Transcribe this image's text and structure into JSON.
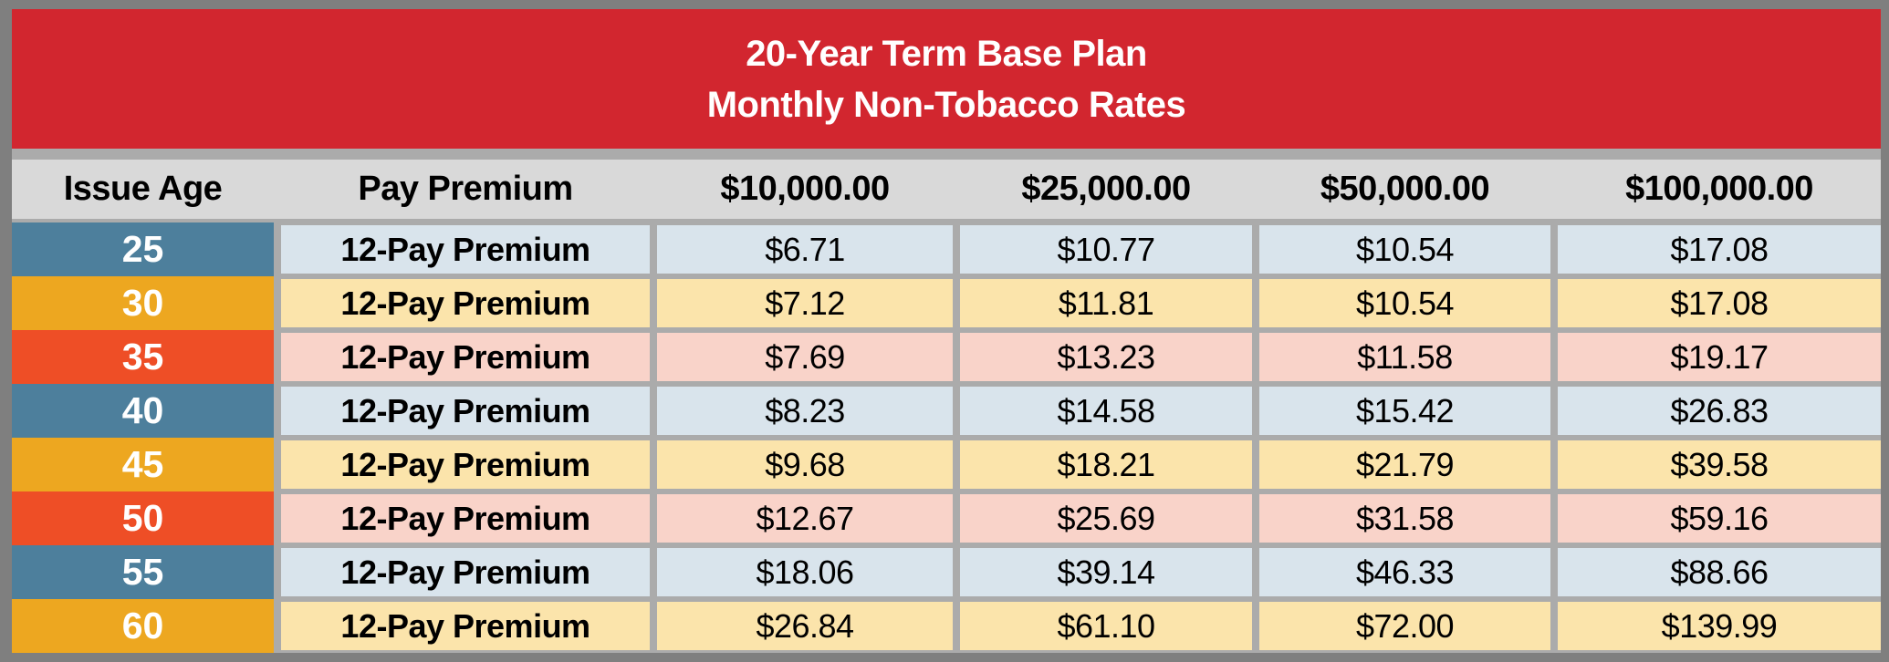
{
  "banner": {
    "line1": "20-Year Term Base Plan",
    "line2": "Monthly Non-Tobacco Rates"
  },
  "columns": [
    "Issue Age",
    "Pay Premium",
    "$10,000.00",
    "$25,000.00",
    "$50,000.00",
    "$100,000.00"
  ],
  "rows": [
    {
      "age": "25",
      "label": "12-Pay Premium",
      "values": [
        "$6.71",
        "$10.77",
        "$10.54",
        "$17.08"
      ]
    },
    {
      "age": "30",
      "label": "12-Pay Premium",
      "values": [
        "$7.12",
        "$11.81",
        "$10.54",
        "$17.08"
      ]
    },
    {
      "age": "35",
      "label": "12-Pay Premium",
      "values": [
        "$7.69",
        "$13.23",
        "$11.58",
        "$19.17"
      ]
    },
    {
      "age": "40",
      "label": "12-Pay Premium",
      "values": [
        "$8.23",
        "$14.58",
        "$15.42",
        "$26.83"
      ]
    },
    {
      "age": "45",
      "label": "12-Pay Premium",
      "values": [
        "$9.68",
        "$18.21",
        "$21.79",
        "$39.58"
      ]
    },
    {
      "age": "50",
      "label": "12-Pay Premium",
      "values": [
        "$12.67",
        "$25.69",
        "$31.58",
        "$59.16"
      ]
    },
    {
      "age": "55",
      "label": "12-Pay Premium",
      "values": [
        "$18.06",
        "$39.14",
        "$46.33",
        "$88.66"
      ]
    },
    {
      "age": "60",
      "label": "12-Pay Premium",
      "values": [
        "$26.84",
        "$61.10",
        "$72.00",
        "$139.99"
      ]
    }
  ],
  "colors": {
    "frame": "#7f7f7f",
    "grid_bg": "#ababab",
    "banner_red": "#d2262f",
    "title_text": "#ffffff",
    "header_bg": "#d9d9d9",
    "text_black": "#000000",
    "age_blue": "#4d7f9c",
    "age_gold": "#eda720",
    "age_orange": "#ee4e26",
    "cell_blue": "#d9e4ec",
    "cell_gold": "#fbe4ab",
    "cell_orange": "#f9d3c9"
  },
  "chart_data": {
    "type": "table",
    "title": "20-Year Term Base Plan Monthly Non-Tobacco Rates",
    "columns": [
      "Issue Age",
      "Pay Premium",
      "$10,000.00",
      "$25,000.00",
      "$50,000.00",
      "$100,000.00"
    ],
    "rows": [
      [
        "25",
        "12-Pay Premium",
        "$6.71",
        "$10.77",
        "$10.54",
        "$17.08"
      ],
      [
        "30",
        "12-Pay Premium",
        "$7.12",
        "$11.81",
        "$10.54",
        "$17.08"
      ],
      [
        "35",
        "12-Pay Premium",
        "$7.69",
        "$13.23",
        "$11.58",
        "$19.17"
      ],
      [
        "40",
        "12-Pay Premium",
        "$8.23",
        "$14.58",
        "$15.42",
        "$26.83"
      ],
      [
        "45",
        "12-Pay Premium",
        "$9.68",
        "$18.21",
        "$21.79",
        "$39.58"
      ],
      [
        "50",
        "12-Pay Premium",
        "$12.67",
        "$25.69",
        "$31.58",
        "$59.16"
      ],
      [
        "55",
        "12-Pay Premium",
        "$18.06",
        "$39.14",
        "$46.33",
        "$88.66"
      ],
      [
        "60",
        "12-Pay Premium",
        "$26.84",
        "$61.10",
        "$72.00",
        "$139.99"
      ]
    ]
  }
}
